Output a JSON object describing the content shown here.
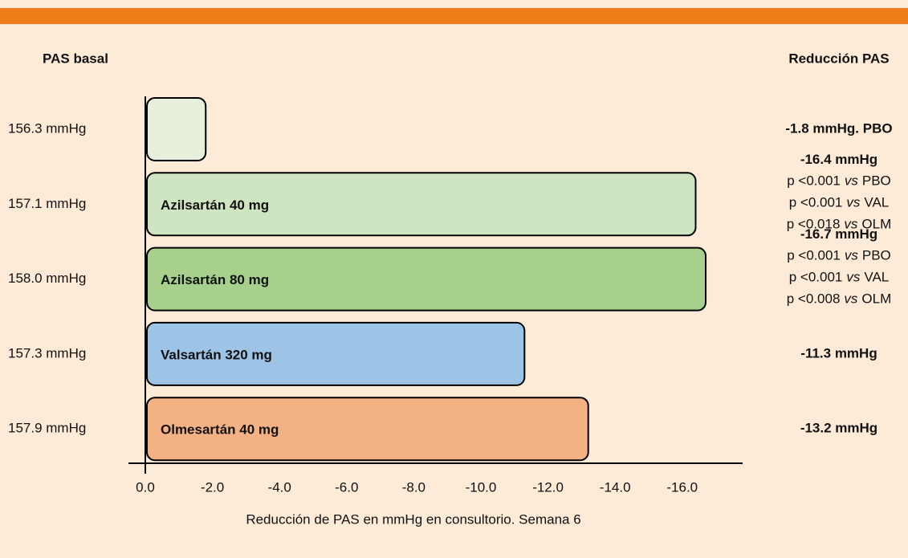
{
  "chart_data": {
    "type": "bar",
    "orientation": "horizontal",
    "left_header": "PAS basal",
    "right_header": "Reducción PAS",
    "categories": [
      null,
      "Azilsartán 40 mg",
      "Azilsartán 80 mg",
      "Valsartán 320 mg",
      "Olmesartán 40 mg"
    ],
    "baseline": [
      "156.3 mmHg",
      "157.1 mmHg",
      "158.0 mmHg",
      "157.3 mmHg",
      "157.9 mmHg"
    ],
    "values": [
      -1.8,
      -16.4,
      -16.7,
      -11.3,
      -13.2
    ],
    "value_labels": [
      "-1.8 mmHg. PBO",
      "-16.4 mmHg",
      "-16.7 mmHg",
      "-11.3 mmHg",
      "-13.2 mmHg"
    ],
    "annotations": [
      [],
      [
        [
          "p <0.001",
          "vs",
          "PBO"
        ],
        [
          "p <0.001",
          "vs",
          "VAL"
        ],
        [
          "p <0.018",
          "vs",
          "OLM"
        ]
      ],
      [
        [
          "p <0.001",
          "vs",
          "PBO"
        ],
        [
          "p <0.001",
          "vs",
          "VAL"
        ],
        [
          "p <0.008",
          "vs",
          "OLM"
        ]
      ],
      [],
      []
    ],
    "colors": [
      "#e6f0dc",
      "#cfe4c0",
      "#a8d08d",
      "#9dc3e6",
      "#f4b183"
    ],
    "xlim": [
      0,
      -17.8
    ],
    "xticks": [
      {
        "value": 0,
        "label": "0.0"
      },
      {
        "value": -2,
        "label": "-2.0"
      },
      {
        "value": -4,
        "label": "-4.0"
      },
      {
        "value": -6,
        "label": "-6.0"
      },
      {
        "value": -8,
        "label": "-8.0"
      },
      {
        "value": -10,
        "label": "-10.0"
      },
      {
        "value": -12,
        "label": "-12.0"
      },
      {
        "value": -14,
        "label": "-14.0"
      },
      {
        "value": -16,
        "label": "-16.0"
      }
    ],
    "xlabel": "Reducción de PAS en mmHg en consultorio. Semana 6"
  }
}
